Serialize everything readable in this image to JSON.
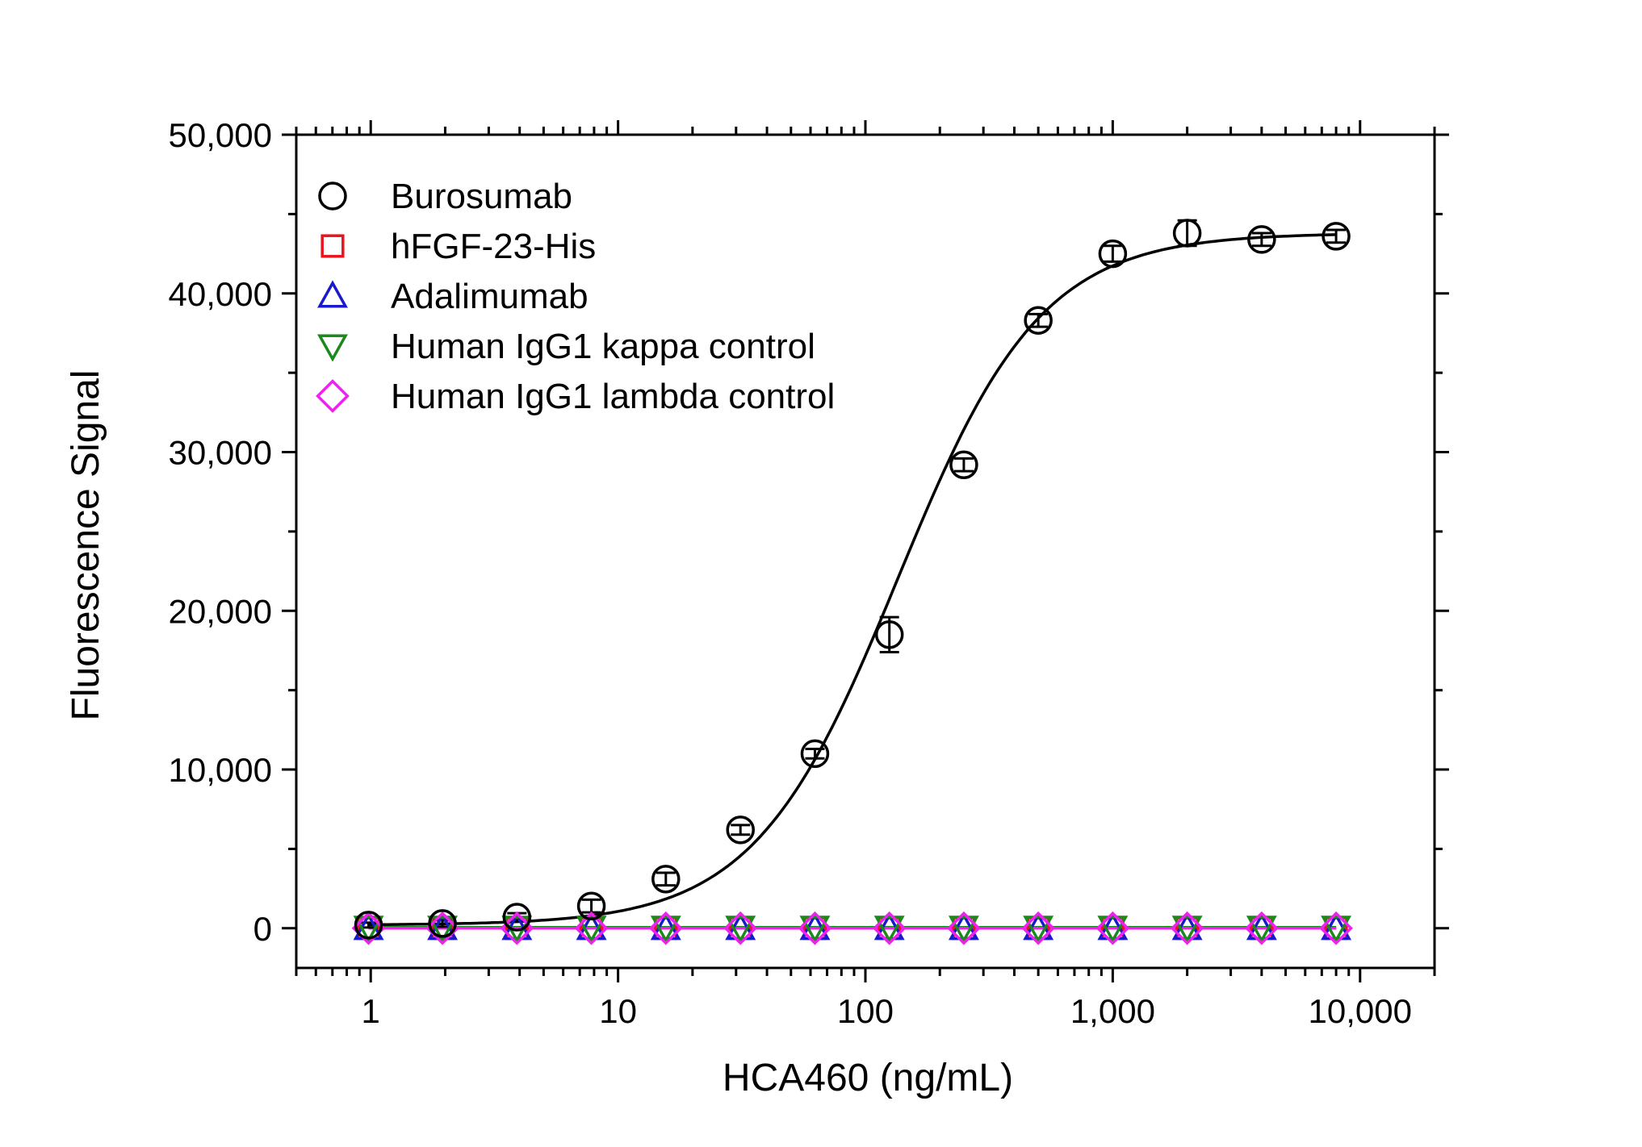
{
  "chart_data": {
    "type": "scatter",
    "title": "",
    "xlabel": "HCA460 (ng/mL)",
    "ylabel": "Fluorescence Signal",
    "x_scale": "log",
    "xlim": [
      0.5,
      20000
    ],
    "ylim": [
      -2500,
      50000
    ],
    "x_ticks": [
      1,
      10,
      100,
      1000,
      10000
    ],
    "x_tick_labels": [
      "1",
      "10",
      "100",
      "1,000",
      "10,000"
    ],
    "y_ticks": [
      0,
      10000,
      20000,
      30000,
      40000,
      50000
    ],
    "y_tick_labels": [
      "0",
      "10,000",
      "20,000",
      "30,000",
      "40,000",
      "50,000"
    ],
    "legend_position": "top-left",
    "grid": false,
    "x": [
      0.98,
      1.95,
      3.9,
      7.8,
      15.6,
      31.25,
      62.5,
      125,
      250,
      500,
      1000,
      2000,
      4000,
      8000
    ],
    "series": [
      {
        "name": "Burosumab",
        "marker": "circle",
        "color": "#000000",
        "values": [
          200,
          300,
          700,
          1400,
          3100,
          6200,
          11000,
          18500,
          29200,
          38300,
          42500,
          43800,
          43400,
          43600
        ],
        "errors": [
          150,
          200,
          250,
          400,
          400,
          300,
          300,
          1100,
          400,
          400,
          500,
          800,
          400,
          400
        ],
        "fit_curve": {
          "model": "4PL",
          "bottom": 200,
          "top": 43800,
          "ec50": 135,
          "hill": 1.5,
          "color": "#000000"
        }
      },
      {
        "name": "hFGF-23-His",
        "marker": "square",
        "color": "#e8141e",
        "values": [
          0,
          0,
          0,
          0,
          0,
          0,
          0,
          0,
          0,
          0,
          0,
          0,
          0,
          0
        ]
      },
      {
        "name": "Adalimumab",
        "marker": "triangle-up",
        "color": "#1a1acc",
        "values": [
          0,
          0,
          0,
          0,
          0,
          0,
          0,
          0,
          0,
          0,
          0,
          0,
          0,
          0
        ]
      },
      {
        "name": "Human IgG1 kappa control",
        "marker": "triangle-down",
        "color": "#1a8a1a",
        "values": [
          50,
          50,
          50,
          50,
          50,
          50,
          50,
          50,
          50,
          50,
          50,
          50,
          50,
          50
        ]
      },
      {
        "name": "Human IgG1 lambda control",
        "marker": "diamond",
        "color": "#ee22ee",
        "values": [
          0,
          0,
          0,
          0,
          0,
          0,
          0,
          0,
          0,
          0,
          0,
          0,
          0,
          0
        ]
      }
    ]
  }
}
